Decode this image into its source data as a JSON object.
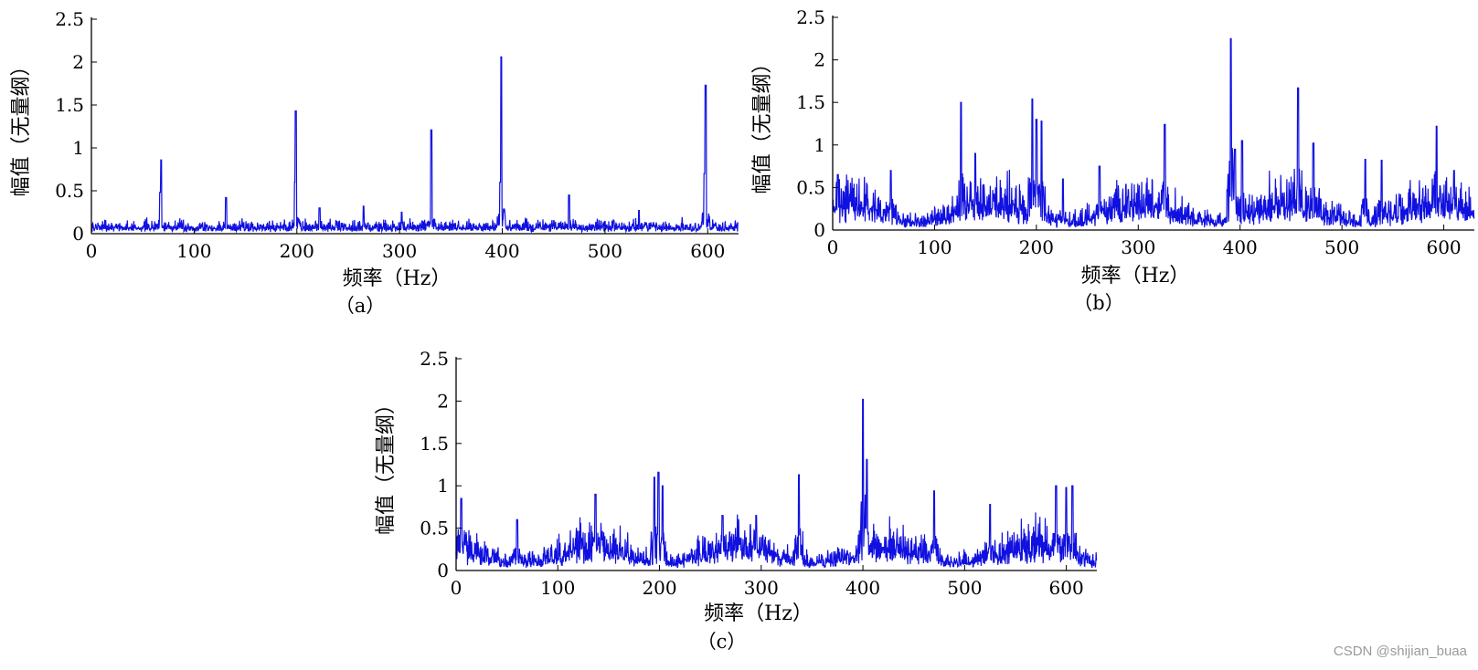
{
  "chart_data": [
    {
      "type": "line",
      "caption": "（a）",
      "xlabel": "频率（Hz）",
      "ylabel": "幅值（无量纲）",
      "xlim": [
        0,
        630
      ],
      "ylim": [
        0,
        2.5
      ],
      "xticks": [
        0,
        100,
        200,
        300,
        400,
        500,
        600
      ],
      "xtick_labels": [
        "0",
        "100",
        "200",
        "300",
        "400",
        "500",
        "600"
      ],
      "yticks": [
        0,
        0.5,
        1,
        1.5,
        2,
        2.5
      ],
      "ytick_labels": [
        "0",
        "0.5",
        "1",
        "1.5",
        "2",
        "2.5"
      ],
      "grid": false,
      "color": "#1010e0",
      "series": [
        {
          "x": [
            0,
            67,
            68,
            131,
            198,
            199,
            222,
            265,
            302,
            331,
            398,
            399,
            465,
            533,
            597,
            598,
            630
          ],
          "y": [
            0.1,
            0.48,
            0.86,
            0.42,
            0.6,
            1.43,
            0.3,
            0.32,
            0.25,
            1.21,
            0.6,
            2.06,
            0.45,
            0.27,
            0.7,
            1.73,
            0.1
          ],
          "noise_floor": 0.09
        }
      ]
    },
    {
      "type": "line",
      "caption": "（b）",
      "xlabel": "频率（Hz）",
      "ylabel": "幅值（无量纲）",
      "xlim": [
        0,
        630
      ],
      "ylim": [
        0,
        2.5
      ],
      "xticks": [
        0,
        100,
        200,
        300,
        400,
        500,
        600
      ],
      "xtick_labels": [
        "0",
        "100",
        "200",
        "300",
        "400",
        "500",
        "600"
      ],
      "yticks": [
        0,
        0.5,
        1,
        1.5,
        2,
        2.5
      ],
      "ytick_labels": [
        "0",
        "0.5",
        "1",
        "1.5",
        "2",
        "2.5"
      ],
      "grid": false,
      "color": "#1010e0",
      "series": [
        {
          "x": [
            5,
            57,
            126,
            140,
            196,
            200,
            205,
            226,
            262,
            326,
            391,
            395,
            402,
            457,
            472,
            523,
            539,
            593,
            610
          ],
          "y": [
            0.65,
            0.7,
            1.5,
            0.9,
            1.54,
            1.3,
            1.28,
            0.6,
            0.75,
            1.24,
            2.25,
            0.95,
            1.05,
            1.67,
            1.02,
            0.83,
            0.82,
            1.22,
            0.7
          ],
          "noise_floor": 0.3
        }
      ]
    },
    {
      "type": "line",
      "caption": "（c）",
      "xlabel": "频率（Hz）",
      "ylabel": "幅值（无量纲）",
      "xlim": [
        0,
        630
      ],
      "ylim": [
        0,
        2.5
      ],
      "xticks": [
        0,
        100,
        200,
        300,
        400,
        500,
        600
      ],
      "xtick_labels": [
        "0",
        "100",
        "200",
        "300",
        "400",
        "500",
        "600"
      ],
      "yticks": [
        0,
        0.5,
        1,
        1.5,
        2,
        2.5
      ],
      "ytick_labels": [
        "0",
        "0.5",
        "1",
        "1.5",
        "2",
        "2.5"
      ],
      "grid": false,
      "color": "#1010e0",
      "series": [
        {
          "x": [
            5,
            60,
            137,
            195,
            199,
            203,
            262,
            295,
            337,
            400,
            404,
            470,
            525,
            590,
            600,
            606
          ],
          "y": [
            0.85,
            0.6,
            0.9,
            1.1,
            1.16,
            1.0,
            0.65,
            0.65,
            1.13,
            2.02,
            1.31,
            0.94,
            0.78,
            1.0,
            0.98,
            1.0
          ],
          "noise_floor": 0.28
        }
      ]
    }
  ],
  "watermark": "CSDN @shijian_buaa"
}
